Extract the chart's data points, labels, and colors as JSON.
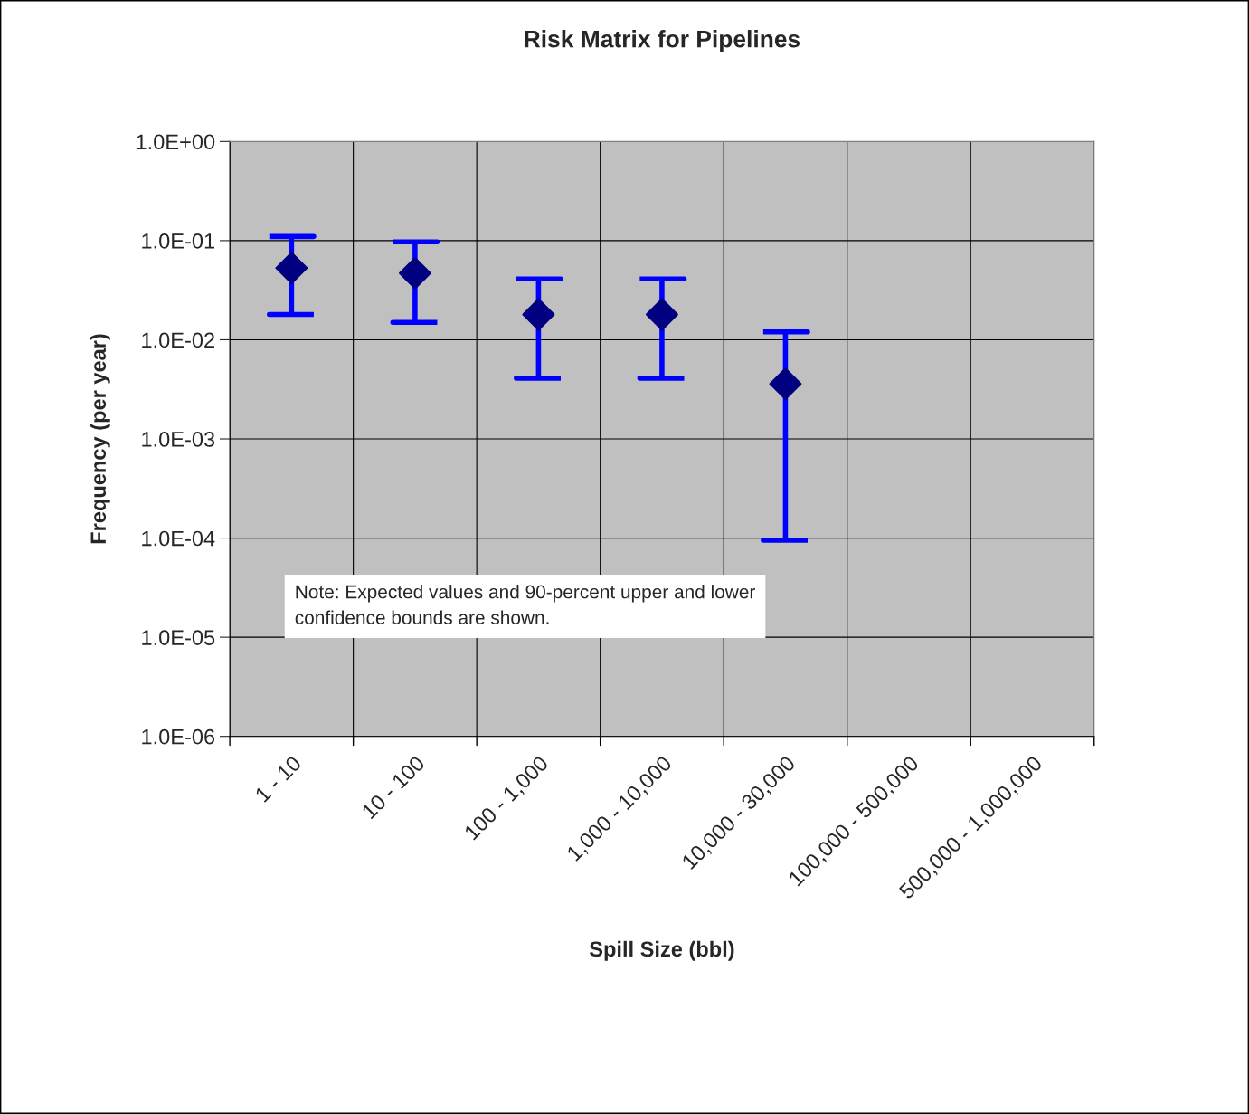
{
  "chart_data": {
    "type": "scatter",
    "title": "Risk Matrix for Pipelines",
    "xlabel": "Spill Size (bbl)",
    "ylabel": "Frequency (per year)",
    "categories": [
      "1 - 10",
      "10 - 100",
      "100 - 1,000",
      "1,000 - 10,000",
      "10,000 - 30,000",
      "100,000 - 500,000",
      "500,000 - 1,000,000"
    ],
    "color": "#000080",
    "values": [
      0.053,
      0.047,
      0.018,
      0.018,
      0.0036,
      null,
      null
    ],
    "errors": [
      [
        0.018,
        0.11
      ],
      [
        0.015,
        0.097
      ],
      [
        0.0041,
        0.041
      ],
      [
        0.0041,
        0.041
      ],
      [
        9.5e-05,
        0.012
      ],
      null,
      null
    ],
    "log": "y",
    "ylim": [
      1e-06,
      1
    ],
    "yticks": [
      {
        "value": 1e-06,
        "label": "1.0E-06"
      },
      {
        "value": 1e-05,
        "label": "1.0E-05"
      },
      {
        "value": 0.0001,
        "label": "1.0E-04"
      },
      {
        "value": 0.001,
        "label": "1.0E-03"
      },
      {
        "value": 0.01,
        "label": "1.0E-02"
      },
      {
        "value": 0.1,
        "label": "1.0E-01"
      },
      {
        "value": 1,
        "label": "1.0E+00"
      }
    ],
    "grid": true,
    "marker": "diamond",
    "legend": false,
    "annotations": [
      "Note: Expected values and 90-percent upper and lower\nconfidence bounds are shown."
    ]
  }
}
